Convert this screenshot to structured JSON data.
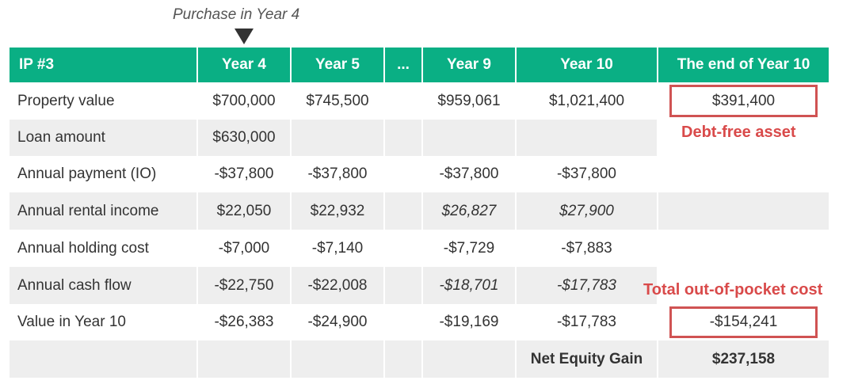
{
  "annotations": {
    "purchase": "Purchase in Year 4",
    "debt_free": "Debt-free asset",
    "out_of_pocket": "Total out-of-pocket cost"
  },
  "table": {
    "header": [
      "IP #3",
      "Year 4",
      "Year 5",
      "...",
      "Year 9",
      "Year 10",
      "The end of Year 10"
    ],
    "rows": [
      [
        "Property value",
        "$700,000",
        "$745,500",
        null,
        "$959,061",
        "$1,021,400",
        "$391,400"
      ],
      [
        "Loan amount",
        "$630,000",
        null,
        null,
        null,
        null,
        null
      ],
      [
        "Annual payment (IO)",
        "-$37,800",
        "-$37,800",
        null,
        "-$37,800",
        "-$37,800",
        null
      ],
      [
        "Annual rental income",
        "$22,050",
        "$22,932",
        null,
        "$26,827",
        "$27,900",
        null
      ],
      [
        "Annual holding cost",
        "-$7,000",
        "-$7,140",
        null,
        "-$7,729",
        "-$7,883",
        null
      ],
      [
        "Annual cash flow",
        "-$22,750",
        "-$22,008",
        null,
        "-$18,701",
        "-$17,783",
        null
      ],
      [
        "Value in Year 10",
        "-$26,383",
        "-$24,900",
        null,
        "-$19,169",
        "-$17,783",
        "-$154,241"
      ],
      [
        null,
        null,
        null,
        null,
        null,
        "Net Equity Gain",
        "$237,158"
      ]
    ]
  }
}
